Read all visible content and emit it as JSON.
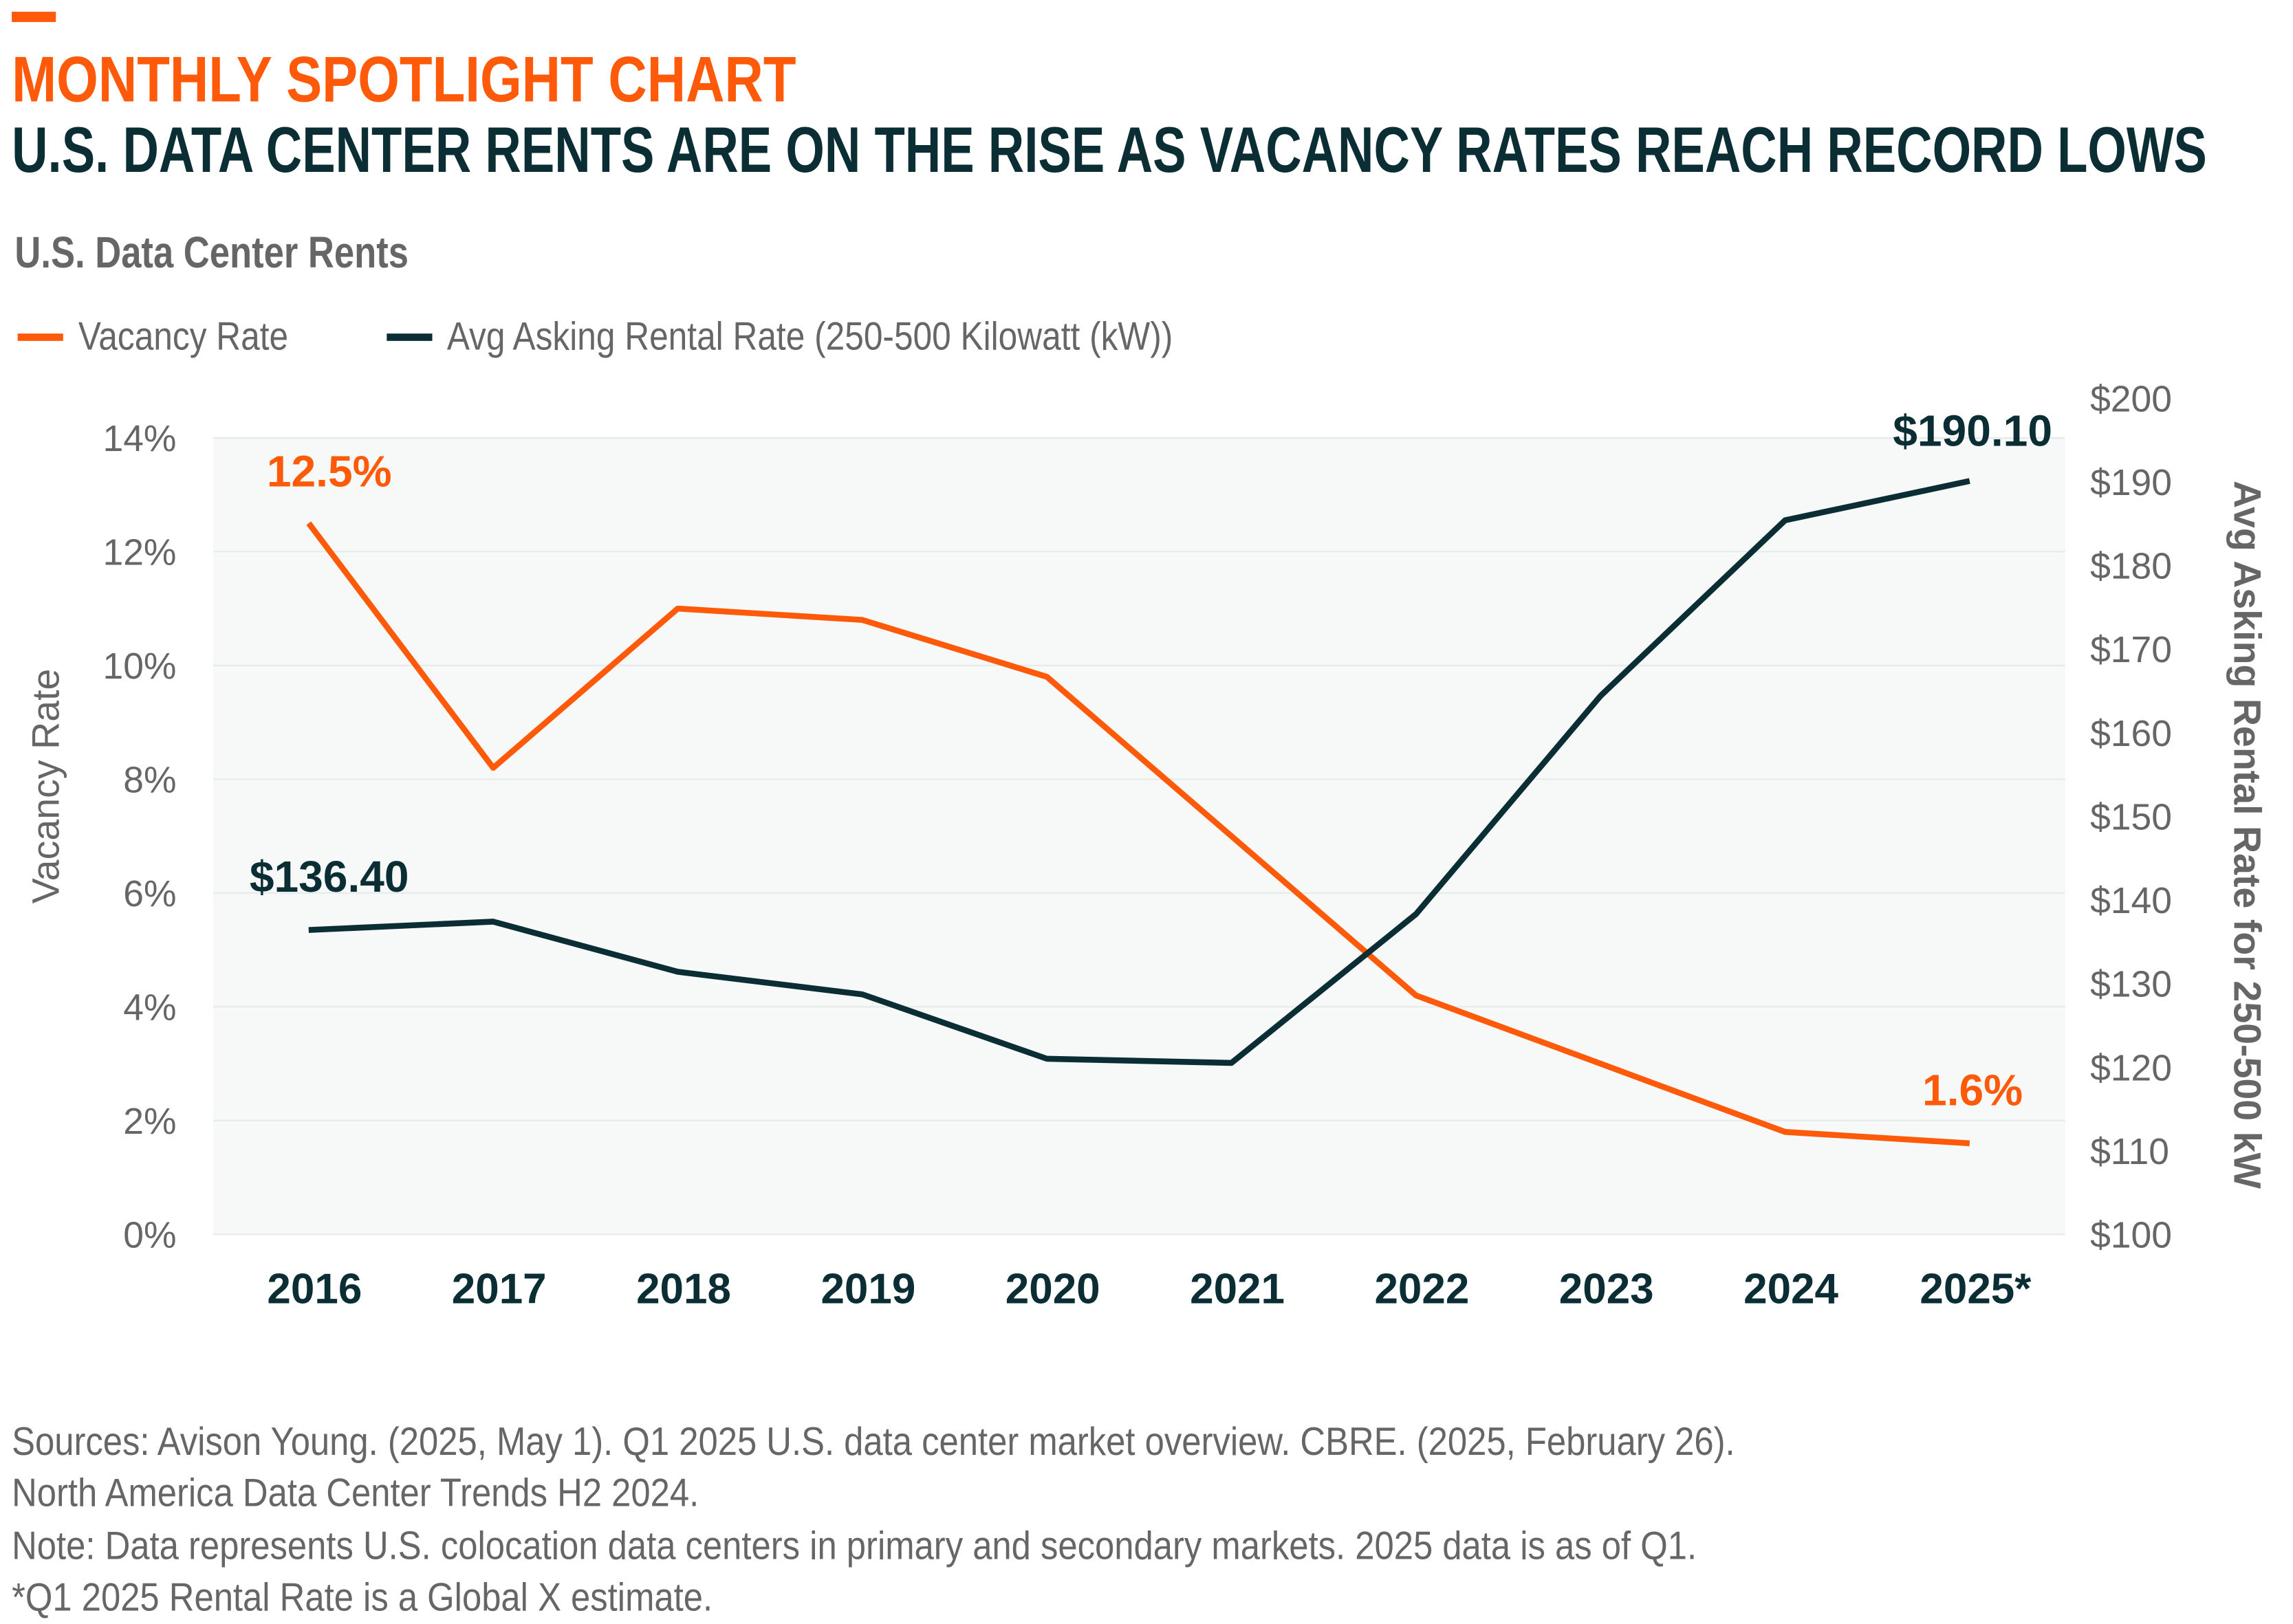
{
  "header": {
    "kicker": "MONTHLY SPOTLIGHT CHART",
    "headline": "U.S. DATA CENTER RENTS ARE ON THE RISE AS VACANCY RATES REACH RECORD LOWS",
    "accent_color": "#ff5a0a"
  },
  "chart_data": {
    "type": "line",
    "title": "U.S. Data Center Rents",
    "categories": [
      "2016",
      "2017",
      "2018",
      "2019",
      "2020",
      "2021",
      "2022",
      "2023",
      "2024",
      "2025*"
    ],
    "series": [
      {
        "name": "Vacancy Rate",
        "axis": "left",
        "color": "#ff5a0a",
        "unit": "%",
        "values": [
          12.5,
          8.2,
          11.0,
          10.8,
          9.8,
          7.0,
          4.2,
          3.0,
          1.8,
          1.6
        ]
      },
      {
        "name": "Avg Asking Rental Rate (250-500 Kilowatt (kW))",
        "axis": "right",
        "color": "#0b2e35",
        "unit": "$",
        "values": [
          136.4,
          137.4,
          131.4,
          128.7,
          121.0,
          120.5,
          138.3,
          164.4,
          185.4,
          190.1
        ]
      }
    ],
    "left_axis": {
      "label": "Vacancy Rate",
      "ylim": [
        0,
        14
      ],
      "ticks": [
        "0%",
        "2%",
        "4%",
        "6%",
        "8%",
        "10%",
        "12%",
        "14%"
      ]
    },
    "right_axis": {
      "label": "Avg Asking Rental Rate for 250-500 kW",
      "ylim": [
        100,
        200
      ],
      "ticks": [
        "$100",
        "$110",
        "$120",
        "$130",
        "$140",
        "$150",
        "$160",
        "$170",
        "$180",
        "$190",
        "$200"
      ]
    },
    "annotations": [
      {
        "series": 0,
        "index": 0,
        "text": "12.5%"
      },
      {
        "series": 0,
        "index": 9,
        "text": "1.6%"
      },
      {
        "series": 1,
        "index": 0,
        "text": "$136.40"
      },
      {
        "series": 1,
        "index": 9,
        "text": "$190.10"
      }
    ],
    "grid": true,
    "legend": "top-left"
  },
  "footer": {
    "lines": [
      "Sources: Avison Young. (2025, May 1). Q1 2025 U.S. data center market overview. CBRE. (2025, February 26).",
      "North America Data Center Trends H2 2024.",
      "Note: Data represents U.S. colocation data centers in primary and secondary markets. 2025 data is as of Q1.",
      "*Q1 2025 Rental Rate is a Global X estimate."
    ]
  }
}
